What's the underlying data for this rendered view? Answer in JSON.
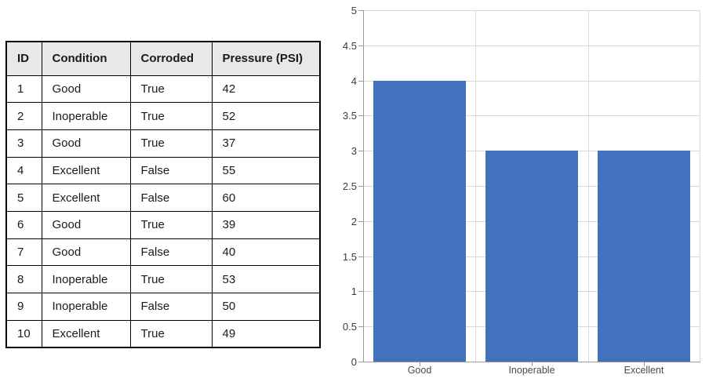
{
  "table": {
    "columns": [
      "ID",
      "Condition",
      "Corroded",
      "Pressure (PSI)"
    ],
    "rows": [
      [
        "1",
        "Good",
        "True",
        "42"
      ],
      [
        "2",
        "Inoperable",
        "True",
        "52"
      ],
      [
        "3",
        "Good",
        "True",
        "37"
      ],
      [
        "4",
        "Excellent",
        "False",
        "55"
      ],
      [
        "5",
        "Excellent",
        "False",
        "60"
      ],
      [
        "6",
        "Good",
        "True",
        "39"
      ],
      [
        "7",
        "Good",
        "False",
        "40"
      ],
      [
        "8",
        "Inoperable",
        "True",
        "53"
      ],
      [
        "9",
        "Inoperable",
        "False",
        "50"
      ],
      [
        "10",
        "Excellent",
        "True",
        "49"
      ]
    ]
  },
  "chart_data": {
    "type": "bar",
    "categories": [
      "Good",
      "Inoperable",
      "Excellent"
    ],
    "values": [
      4,
      3,
      3
    ],
    "title": "",
    "xlabel": "",
    "ylabel": "",
    "ylim": [
      0,
      5
    ],
    "ytick_step": 0.5,
    "grid": true,
    "legend": false
  },
  "colors": {
    "bar_fill": "#4272BD",
    "gridline": "#D9D9D9",
    "axis_line": "#9A9A9A",
    "y_tick_label": "#3B3B3B",
    "x_cat_label": "#4A4A4A",
    "table_header_bg": "#E8E8E8",
    "table_border": "#000000",
    "background": "#FFFFFF"
  }
}
